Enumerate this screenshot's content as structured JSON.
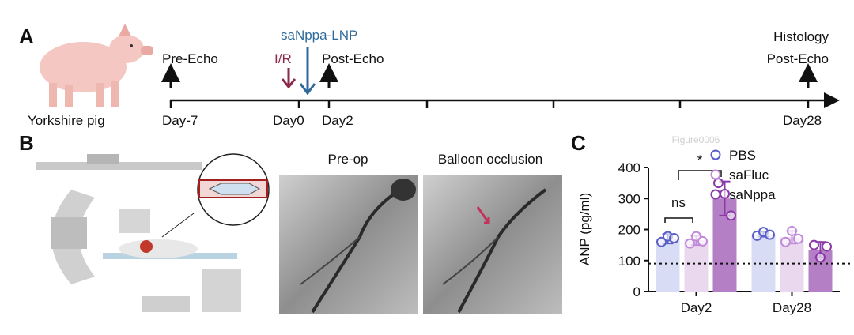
{
  "panel_a": {
    "label": "A",
    "animal": "Yorkshire pig",
    "events": {
      "pre": "Pre-Echo",
      "injury": "I/R",
      "treatment": "saNppa-LNP",
      "post": "Post-Echo",
      "histology": "Histology",
      "final": "Post-Echo"
    },
    "days": [
      "Day-7",
      "Day0",
      "Day2",
      "Day28"
    ]
  },
  "panel_b": {
    "label": "B",
    "images": [
      "Pre-op",
      "Balloon occlusion"
    ]
  },
  "watermark": "Figure0006",
  "chart_data": {
    "type": "bar",
    "panel_label": "C",
    "y_label": "ANP (pg/ml)",
    "categories": [
      "Day2",
      "Day28"
    ],
    "series": [
      {
        "name": "PBS",
        "color": "#d9dcf5",
        "edge_color": "#5a5fc8",
        "values": [
          170,
          185
        ],
        "errors": [
          15,
          8
        ],
        "points": [
          [
            160,
            178,
            172
          ],
          [
            180,
            192,
            183
          ]
        ]
      },
      {
        "name": "saFluc",
        "color": "#ead8ef",
        "edge_color": "#c08ad8",
        "values": [
          165,
          175
        ],
        "errors": [
          15,
          20
        ],
        "points": [
          [
            155,
            178,
            162
          ],
          [
            160,
            195,
            170
          ]
        ]
      },
      {
        "name": "saNppa",
        "color": "#b57fc6",
        "edge_color": "#8a3aa8",
        "values": [
          300,
          135
        ],
        "errors": [
          55,
          25
        ],
        "points": [
          [
            350,
            315,
            245
          ],
          [
            150,
            110,
            145
          ]
        ]
      }
    ],
    "ylim": [
      0,
      400
    ],
    "yticks": [
      0,
      100,
      200,
      300,
      400
    ],
    "reference_line": 90,
    "annotations": [
      "ns",
      "*"
    ]
  }
}
